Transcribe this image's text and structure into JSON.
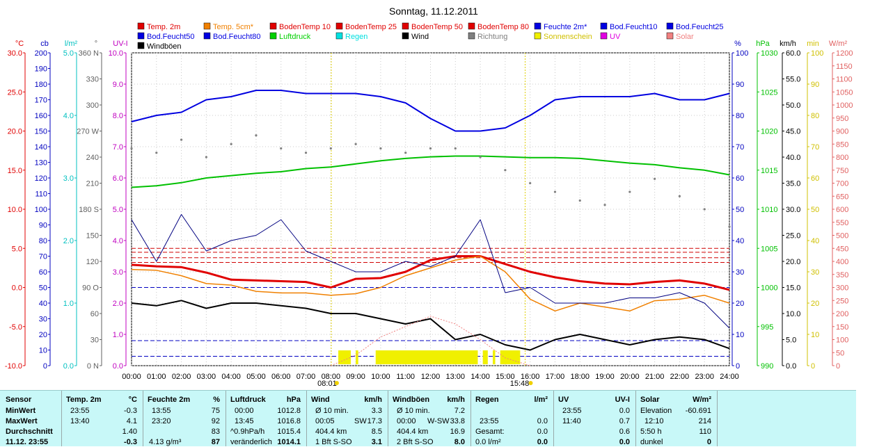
{
  "title": "Sonntag, 11.12.2011",
  "legend": [
    {
      "label": "Temp. 2m",
      "color": "#e00000"
    },
    {
      "label": "Temp. 5cm*",
      "color": "#f08000"
    },
    {
      "label": "BodenTemp 10",
      "color": "#e00000"
    },
    {
      "label": "BodenTemp 25",
      "color": "#e00000"
    },
    {
      "label": "BodenTemp 50",
      "color": "#e00000"
    },
    {
      "label": "BodenTemp 80",
      "color": "#e00000"
    },
    {
      "label": "Feuchte 2m*",
      "color": "#0000e0"
    },
    {
      "label": "Bod.Feucht10",
      "color": "#0000e0"
    },
    {
      "label": "Bod.Feucht25",
      "color": "#0000e0"
    },
    {
      "label": "Bod.Feucht50",
      "color": "#0000e0"
    },
    {
      "label": "Bod.Feucht80",
      "color": "#0000e0"
    },
    {
      "label": "Luftdruck",
      "color": "#00d000"
    },
    {
      "label": "Regen",
      "color": "#00e0e0"
    },
    {
      "label": "Wind",
      "color": "#000000"
    },
    {
      "label": "Richtung",
      "color": "#808080"
    },
    {
      "label": "Sonnenschein",
      "color": "#f0f000"
    },
    {
      "label": "UV",
      "color": "#e000e0"
    },
    {
      "label": "Solar",
      "color": "#f08080"
    },
    {
      "label": "Windböen",
      "color": "#000000"
    }
  ],
  "axes_left": [
    {
      "unit": "°C",
      "color": "#e00000",
      "min": -10,
      "max": 30,
      "ticks": [
        "-10.0",
        "-5.0",
        "0.0",
        "5.0",
        "10.0",
        "15.0",
        "20.0",
        "25.0",
        "30.0"
      ]
    },
    {
      "unit": "cb",
      "color": "#0000c0",
      "min": 0,
      "max": 200,
      "ticks": [
        "0",
        "10",
        "20",
        "30",
        "40",
        "50",
        "60",
        "70",
        "80",
        "90",
        "100",
        "110",
        "120",
        "130",
        "140",
        "150",
        "160",
        "170",
        "180",
        "190",
        "200"
      ]
    },
    {
      "unit": "l/m²",
      "color": "#00c0c0",
      "min": 0,
      "max": 5,
      "ticks": [
        "0.0",
        "1.0",
        "2.0",
        "3.0",
        "4.0",
        "5.0"
      ]
    },
    {
      "unit": "°",
      "color": "#606060",
      "min": 0,
      "max": 360,
      "ticks": [
        "0 N",
        "30",
        "60",
        "90 O",
        "120",
        "150",
        "180 S",
        "210",
        "240",
        "270 W",
        "300",
        "330",
        "360 N"
      ]
    },
    {
      "unit": "UV-I",
      "color": "#c000c0",
      "min": 0,
      "max": 10,
      "ticks": [
        "0.0",
        "1.0",
        "2.0",
        "3.0",
        "4.0",
        "5.0",
        "6.0",
        "7.0",
        "8.0",
        "9.0",
        "10.0"
      ]
    }
  ],
  "axes_right": [
    {
      "unit": "%",
      "color": "#0000c0",
      "min": 0,
      "max": 100,
      "ticks": [
        "0",
        "10",
        "20",
        "30",
        "40",
        "50",
        "60",
        "70",
        "80",
        "90",
        "100"
      ]
    },
    {
      "unit": "hPa",
      "color": "#00c000",
      "min": 990,
      "max": 1030,
      "ticks": [
        "990",
        "995",
        "1000",
        "1005",
        "1010",
        "1015",
        "1020",
        "1025",
        "1030"
      ]
    },
    {
      "unit": "km/h",
      "color": "#000000",
      "min": 0,
      "max": 60,
      "ticks": [
        "0.0",
        "5.0",
        "10.0",
        "15.0",
        "20.0",
        "25.0",
        "30.0",
        "35.0",
        "40.0",
        "45.0",
        "50.0",
        "55.0",
        "60.0"
      ]
    },
    {
      "unit": "min",
      "color": "#d0c000",
      "min": 0,
      "max": 100,
      "ticks": [
        "0",
        "10",
        "20",
        "30",
        "40",
        "50",
        "60",
        "70",
        "80",
        "90",
        "100"
      ]
    },
    {
      "unit": "W/m²",
      "color": "#e06060",
      "min": 0,
      "max": 1200,
      "ticks": [
        "0",
        "50",
        "100",
        "150",
        "200",
        "250",
        "300",
        "350",
        "400",
        "450",
        "500",
        "550",
        "600",
        "650",
        "700",
        "750",
        "800",
        "850",
        "900",
        "950",
        "1000",
        "1050",
        "1100",
        "1150",
        "1200"
      ]
    }
  ],
  "x_ticks": [
    "00:00",
    "01:00",
    "02:00",
    "03:00",
    "04:00",
    "05:00",
    "06:00",
    "07:00",
    "08:00",
    "09:00",
    "10:00",
    "11:00",
    "12:00",
    "13:00",
    "14:00",
    "15:00",
    "16:00",
    "17:00",
    "18:00",
    "19:00",
    "20:00",
    "21:00",
    "22:00",
    "23:00",
    "24:00"
  ],
  "sunrise": "08:01",
  "sunset": "15:48",
  "chart_data": {
    "type": "line",
    "title": "Sonntag, 11.12.2011",
    "x_range": [
      "00:00",
      "24:00"
    ],
    "grid": true,
    "legend_position": "top",
    "series": [
      {
        "name": "Temp. 2m",
        "axis": "°C",
        "color": "#e00000",
        "x": [
          0,
          1,
          2,
          3,
          4,
          5,
          6,
          7,
          8,
          9,
          10,
          11,
          12,
          13,
          14,
          15,
          16,
          17,
          18,
          19,
          20,
          21,
          22,
          23,
          24
        ],
        "values": [
          2.9,
          2.7,
          2.6,
          1.9,
          1.0,
          0.9,
          0.8,
          0.7,
          0.0,
          1.1,
          1.2,
          2.0,
          3.5,
          4.0,
          4.0,
          3.0,
          2.0,
          1.3,
          0.8,
          0.5,
          0.4,
          0.7,
          0.9,
          0.5,
          -0.3
        ]
      },
      {
        "name": "Temp. 5cm*",
        "axis": "°C",
        "color": "#f08000",
        "x": [
          0,
          1,
          2,
          3,
          4,
          5,
          6,
          7,
          8,
          9,
          10,
          11,
          12,
          13,
          14,
          15,
          16,
          17,
          18,
          19,
          20,
          21,
          22,
          23,
          24
        ],
        "values": [
          2.3,
          2.2,
          1.5,
          0.5,
          0.3,
          -0.5,
          -0.7,
          -0.7,
          -1.0,
          -0.8,
          0.0,
          1.5,
          2.5,
          3.5,
          4.0,
          2.0,
          -1.5,
          -3.0,
          -2.0,
          -2.5,
          -3.0,
          -1.7,
          -1.5,
          -1.0,
          -2.0
        ]
      },
      {
        "name": "Feuchte 2m*",
        "axis": "%",
        "color": "#0000e0",
        "x": [
          0,
          1,
          2,
          3,
          4,
          5,
          6,
          7,
          8,
          9,
          10,
          11,
          12,
          13,
          14,
          15,
          16,
          17,
          18,
          19,
          20,
          21,
          22,
          23,
          24
        ],
        "values": [
          78,
          80,
          81,
          85,
          86,
          88,
          88,
          87,
          87,
          87,
          86,
          84,
          79,
          75,
          75,
          76,
          80,
          85,
          86,
          86,
          86,
          87,
          85,
          85,
          87
        ]
      },
      {
        "name": "Luftdruck",
        "axis": "hPa",
        "color": "#00c000",
        "x": [
          0,
          1,
          2,
          3,
          4,
          5,
          6,
          7,
          8,
          9,
          10,
          11,
          12,
          13,
          14,
          15,
          16,
          17,
          18,
          19,
          20,
          21,
          22,
          23,
          24
        ],
        "values": [
          1012.8,
          1013.0,
          1013.4,
          1014.0,
          1014.3,
          1014.6,
          1014.8,
          1015.2,
          1015.4,
          1015.8,
          1016.2,
          1016.5,
          1016.7,
          1016.8,
          1016.8,
          1016.7,
          1016.6,
          1016.6,
          1016.5,
          1016.2,
          1015.9,
          1015.7,
          1015.3,
          1015.0,
          1014.4
        ]
      },
      {
        "name": "Wind",
        "axis": "km/h",
        "color": "#000000",
        "x": [
          0,
          1,
          2,
          3,
          4,
          5,
          6,
          7,
          8,
          9,
          10,
          11,
          12,
          13,
          14,
          15,
          16,
          17,
          18,
          19,
          20,
          21,
          22,
          23,
          24
        ],
        "values": [
          12.0,
          11.5,
          12.5,
          11.0,
          12.0,
          12.0,
          11.5,
          11.0,
          10.0,
          10.0,
          9.0,
          8.0,
          9.0,
          5.0,
          6.0,
          4.0,
          3.0,
          5.0,
          6.0,
          5.0,
          4.0,
          5.0,
          5.5,
          5.0,
          3.3
        ]
      },
      {
        "name": "Windböen",
        "axis": "km/h",
        "color": "#000080",
        "x": [
          0,
          1,
          2,
          3,
          4,
          5,
          6,
          7,
          8,
          9,
          10,
          11,
          12,
          13,
          14,
          15,
          16,
          17,
          18,
          19,
          20,
          21,
          22,
          23,
          24
        ],
        "values": [
          28.0,
          20.0,
          29.0,
          22.0,
          24.0,
          25.0,
          28.0,
          22.0,
          20.0,
          18.0,
          18.0,
          20.0,
          19.0,
          21.0,
          28.0,
          14.0,
          15.0,
          12.0,
          12.0,
          12.0,
          13.0,
          13.0,
          14.0,
          12.0,
          7.2
        ]
      },
      {
        "name": "Richtung",
        "axis": "°",
        "color": "#808080",
        "x": [
          0,
          1,
          2,
          3,
          4,
          5,
          6,
          7,
          8,
          9,
          10,
          11,
          12,
          13,
          14,
          15,
          16,
          17,
          18,
          19,
          20,
          21,
          22,
          23,
          24
        ],
        "values": [
          250,
          245,
          260,
          240,
          255,
          265,
          250,
          245,
          250,
          255,
          250,
          245,
          250,
          250,
          240,
          225,
          210,
          200,
          190,
          185,
          200,
          215,
          195,
          180,
          160
        ]
      },
      {
        "name": "Solar",
        "axis": "W/m²",
        "color": "#f08080",
        "x": [
          8,
          9,
          10,
          11,
          12,
          13,
          14,
          15,
          16
        ],
        "values": [
          0,
          40,
          110,
          150,
          190,
          160,
          100,
          30,
          0
        ]
      }
    ],
    "sunshine_blocks": [
      [
        8.3,
        8.8
      ],
      [
        9.0,
        9.1
      ],
      [
        9.8,
        13.9
      ],
      [
        14.1,
        14.3
      ],
      [
        14.5,
        14.6
      ],
      [
        14.8,
        15.6
      ]
    ],
    "reference_lines": [
      {
        "axis": "°C",
        "value": 5.0,
        "color": "#d00000"
      },
      {
        "axis": "°C",
        "value": 4.5,
        "color": "#d00000"
      },
      {
        "axis": "°C",
        "value": 3.8,
        "color": "#d00000"
      },
      {
        "axis": "°C",
        "value": 3.2,
        "color": "#d00000"
      },
      {
        "axis": "%",
        "value": 3,
        "color": "#0000c0"
      },
      {
        "axis": "%",
        "value": 8,
        "color": "#0000c0"
      },
      {
        "axis": "%",
        "value": 25,
        "color": "#0000c0"
      }
    ]
  },
  "stats": {
    "sensor": {
      "header": "Sensor",
      "rows": [
        "MinWert",
        "MaxWert",
        "Durchschnitt",
        "11.12. 23:55"
      ]
    },
    "temp": {
      "header": "Temp. 2m",
      "unit": "°C",
      "rows": [
        [
          "23:55",
          "-0.3"
        ],
        [
          "13:40",
          "4.1"
        ],
        [
          "",
          "1.40"
        ],
        [
          "",
          "-0.3"
        ]
      ]
    },
    "feuchte": {
      "header": "Feuchte 2m",
      "unit": "%",
      "rows": [
        [
          "13:55",
          "75"
        ],
        [
          "23:20",
          "92"
        ],
        [
          "",
          "83"
        ],
        [
          "4.13 g/m³",
          "87"
        ]
      ]
    },
    "luftdruck": {
      "header": "Luftdruck",
      "unit": "hPa",
      "rows": [
        [
          "00:00",
          "1012.8"
        ],
        [
          "13:45",
          "1016.8"
        ],
        [
          "^0.9hPa/h",
          "1015.4"
        ],
        [
          "veränderlich",
          "1014.1"
        ]
      ]
    },
    "wind": {
      "header": "Wind",
      "unit": "km/h",
      "rows": [
        [
          "Ø 10 min.",
          "",
          "3.3"
        ],
        [
          "00:05",
          "SW",
          "17.3"
        ],
        [
          "404.4 km",
          "",
          "8.5"
        ],
        [
          "1 Bft S-SO",
          "",
          "3.1"
        ]
      ]
    },
    "windboeen": {
      "header": "Windböen",
      "unit": "km/h",
      "rows": [
        [
          "Ø 10 min.",
          "",
          "7.2"
        ],
        [
          "00:00",
          "W-SW",
          "33.8"
        ],
        [
          "404.4 km",
          "",
          "16.9"
        ],
        [
          "2 Bft S-SO",
          "",
          "8.0"
        ]
      ]
    },
    "regen": {
      "header": "Regen",
      "unit": "l/m²",
      "rows": [
        [
          "",
          ""
        ],
        [
          "23:55",
          "0.0"
        ],
        [
          "Gesamt:",
          "0.0"
        ],
        [
          "0.0 l/m²",
          "0.0"
        ]
      ]
    },
    "uv": {
      "header": "UV",
      "unit": "UV-I",
      "rows": [
        [
          "23:55",
          "0.0"
        ],
        [
          "11:40",
          "0.7"
        ],
        [
          "",
          "0.6"
        ],
        [
          "",
          "0.0"
        ]
      ]
    },
    "solar": {
      "header": "Solar",
      "unit": "W/m²",
      "rows": [
        [
          "Elevation",
          "-60.691"
        ],
        [
          "12:10",
          "214"
        ],
        [
          "5:50 h",
          "110"
        ],
        [
          "dunkel",
          "0"
        ]
      ]
    }
  }
}
